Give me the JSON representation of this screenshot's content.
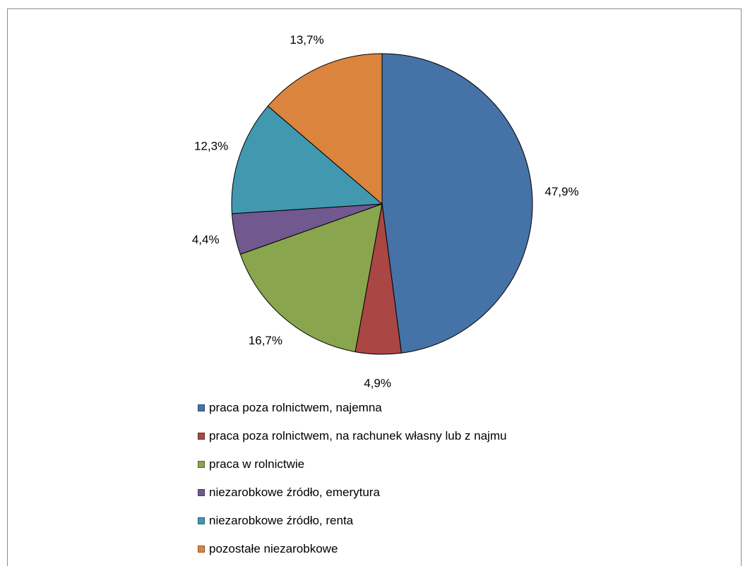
{
  "chart_data": {
    "type": "pie",
    "title": "",
    "start_angle": "12 o'clock",
    "direction": "clockwise",
    "legend_position": "bottom",
    "slices": [
      {
        "label": "praca poza rolnictwem, najemna",
        "value": 47.9,
        "value_label": "47,9%",
        "color": "#4572A7"
      },
      {
        "label": "praca poza rolnictwem, na rachunek własny lub z najmu",
        "value": 4.9,
        "value_label": "4,9%",
        "color": "#AA4643"
      },
      {
        "label": "praca w rolnictwie",
        "value": 16.7,
        "value_label": "16,7%",
        "color": "#89A54E"
      },
      {
        "label": "niezarobkowe źródło, emerytura",
        "value": 4.4,
        "value_label": "4,4%",
        "color": "#71588F"
      },
      {
        "label": "niezarobkowe źródło, renta",
        "value": 12.3,
        "value_label": "12,3%",
        "color": "#4198AF"
      },
      {
        "label": "pozostałe niezarobkowe",
        "value": 13.7,
        "value_label": "13,7%",
        "color": "#DB843D"
      }
    ]
  }
}
